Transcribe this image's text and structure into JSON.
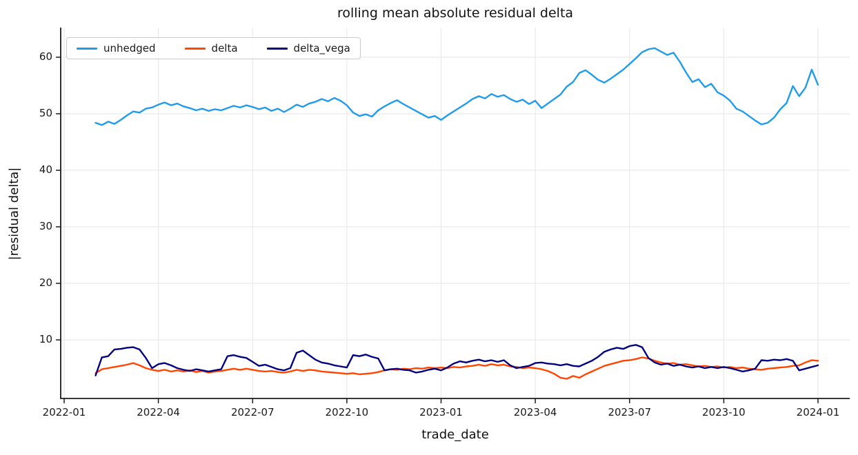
{
  "title": "rolling mean absolute residual delta",
  "x_axis": {
    "label": "trade_date",
    "tick_labels": [
      "2022-01",
      "2022-04",
      "2022-07",
      "2022-10",
      "2023-01",
      "2023-04",
      "2023-07",
      "2023-10",
      "2024-01"
    ]
  },
  "y_axis": {
    "label": "|residual delta|",
    "tick_labels": [
      "10",
      "20",
      "30",
      "40",
      "50",
      "60"
    ]
  },
  "legend": {
    "position": "upper left",
    "items": [
      {
        "label": "unhedged",
        "color": "#1f9be9"
      },
      {
        "label": "delta",
        "color": "#ff4500"
      },
      {
        "label": "delta_vega",
        "color": "#000080"
      }
    ]
  },
  "style": {
    "grid_color": "#e6e6e6",
    "spine_color": "#1a1a1a",
    "background": "#ffffff",
    "line_width": 2.4
  },
  "chart_data": {
    "type": "line",
    "title": "rolling mean absolute residual delta",
    "xlabel": "trade_date",
    "ylabel": "|residual delta|",
    "grid": true,
    "legend_position": "upper left",
    "x_unit": "months since 2022-01-01",
    "x_tick_positions_months": [
      0,
      3,
      6,
      9,
      12,
      15,
      18,
      21,
      24
    ],
    "x_tick_labels": [
      "2022-01",
      "2022-04",
      "2022-07",
      "2022-10",
      "2023-01",
      "2023-04",
      "2023-07",
      "2023-10",
      "2024-01"
    ],
    "y_ticks": [
      10,
      20,
      30,
      40,
      50,
      60
    ],
    "xlim_months": [
      -0.11,
      25.01
    ],
    "ylim": [
      -0.37,
      65.24
    ],
    "sampling": {
      "t0_months": 1.0,
      "dt_months": 0.2,
      "note": "x[i] = t0 + i*dt months after 2022-01-01"
    },
    "series": [
      {
        "name": "unhedged",
        "color": "#1f9be9",
        "values": [
          48.4,
          48.0,
          48.6,
          48.2,
          48.9,
          49.7,
          50.4,
          50.2,
          50.9,
          51.1,
          51.6,
          52.0,
          51.5,
          51.8,
          51.3,
          51.0,
          50.6,
          50.9,
          50.5,
          50.8,
          50.6,
          51.0,
          51.4,
          51.1,
          51.5,
          51.2,
          50.8,
          51.1,
          50.5,
          50.9,
          50.3,
          50.9,
          51.6,
          51.2,
          51.8,
          52.1,
          52.6,
          52.2,
          52.8,
          52.3,
          51.5,
          50.2,
          49.6,
          49.9,
          49.5,
          50.6,
          51.3,
          51.9,
          52.4,
          51.7,
          51.1,
          50.5,
          49.9,
          49.3,
          49.6,
          48.9,
          49.7,
          50.4,
          51.1,
          51.8,
          52.6,
          53.1,
          52.7,
          53.5,
          53.0,
          53.3,
          52.6,
          52.1,
          52.5,
          51.7,
          52.3,
          51.0,
          51.8,
          52.6,
          53.4,
          54.8,
          55.6,
          57.2,
          57.7,
          56.9,
          56.0,
          55.5,
          56.2,
          57.0,
          57.8,
          58.8,
          59.8,
          60.9,
          61.4,
          61.6,
          61.0,
          60.4,
          60.8,
          59.2,
          57.3,
          55.6,
          56.1,
          54.7,
          55.3,
          53.8,
          53.2,
          52.3,
          50.9,
          50.4,
          49.6,
          48.8,
          48.1,
          48.4,
          49.3,
          50.8,
          51.9,
          54.9,
          53.1,
          54.6,
          57.8,
          55.1
        ]
      },
      {
        "name": "delta",
        "color": "#ff4500",
        "values": [
          4.1,
          4.8,
          5.0,
          5.2,
          5.4,
          5.6,
          5.9,
          5.5,
          5.0,
          4.7,
          4.5,
          4.7,
          4.4,
          4.6,
          4.4,
          4.6,
          4.3,
          4.5,
          4.2,
          4.4,
          4.5,
          4.7,
          4.9,
          4.7,
          4.9,
          4.7,
          4.5,
          4.4,
          4.5,
          4.3,
          4.2,
          4.4,
          4.7,
          4.5,
          4.7,
          4.6,
          4.4,
          4.3,
          4.2,
          4.1,
          4.0,
          4.1,
          3.9,
          4.0,
          4.1,
          4.3,
          4.6,
          4.8,
          4.7,
          4.9,
          4.8,
          5.0,
          4.9,
          5.1,
          5.0,
          5.1,
          5.0,
          5.2,
          5.1,
          5.3,
          5.4,
          5.6,
          5.4,
          5.7,
          5.5,
          5.6,
          5.3,
          5.2,
          5.0,
          5.1,
          5.0,
          4.8,
          4.5,
          4.0,
          3.3,
          3.1,
          3.6,
          3.3,
          3.9,
          4.4,
          4.9,
          5.4,
          5.7,
          6.0,
          6.3,
          6.4,
          6.6,
          6.9,
          6.7,
          6.3,
          6.0,
          5.8,
          5.9,
          5.6,
          5.7,
          5.5,
          5.3,
          5.4,
          5.2,
          5.3,
          5.1,
          5.2,
          5.0,
          5.1,
          4.9,
          4.8,
          4.7,
          4.9,
          5.0,
          5.1,
          5.2,
          5.4,
          5.5,
          6.0,
          6.4,
          6.3
        ]
      },
      {
        "name": "delta_vega",
        "color": "#000080",
        "values": [
          3.7,
          6.9,
          7.1,
          8.3,
          8.4,
          8.6,
          8.7,
          8.3,
          6.8,
          5.0,
          5.7,
          5.9,
          5.5,
          5.0,
          4.7,
          4.5,
          4.8,
          4.6,
          4.4,
          4.6,
          4.8,
          7.1,
          7.3,
          7.0,
          6.8,
          6.1,
          5.4,
          5.6,
          5.2,
          4.8,
          4.6,
          5.0,
          7.7,
          8.1,
          7.3,
          6.5,
          6.0,
          5.8,
          5.5,
          5.3,
          5.1,
          7.3,
          7.1,
          7.4,
          7.0,
          6.7,
          4.6,
          4.8,
          4.9,
          4.7,
          4.6,
          4.2,
          4.4,
          4.7,
          4.9,
          4.6,
          5.1,
          5.8,
          6.2,
          6.0,
          6.3,
          6.5,
          6.2,
          6.4,
          6.1,
          6.4,
          5.5,
          5.0,
          5.2,
          5.4,
          5.9,
          6.0,
          5.8,
          5.7,
          5.5,
          5.7,
          5.4,
          5.3,
          5.8,
          6.3,
          7.0,
          7.9,
          8.3,
          8.6,
          8.4,
          8.9,
          9.1,
          8.7,
          6.8,
          6.0,
          5.6,
          5.8,
          5.4,
          5.6,
          5.3,
          5.1,
          5.3,
          5.0,
          5.2,
          5.0,
          5.2,
          5.0,
          4.7,
          4.4,
          4.6,
          4.9,
          6.4,
          6.3,
          6.5,
          6.4,
          6.6,
          6.3,
          4.6,
          4.9,
          5.2,
          5.5
        ]
      }
    ]
  }
}
